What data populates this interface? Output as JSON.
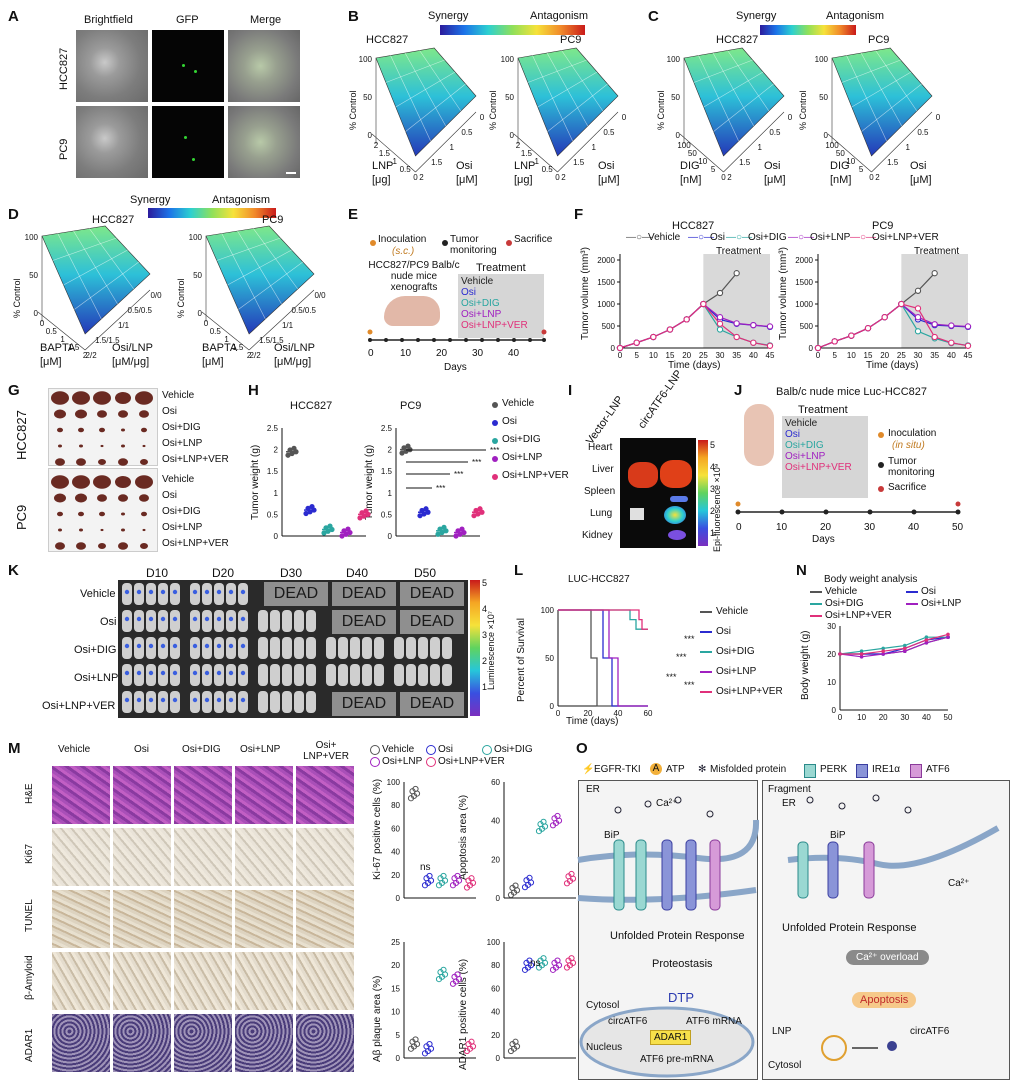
{
  "panels": {
    "A": {
      "label": "A",
      "cols": [
        "Brightfield",
        "GFP",
        "Merge"
      ],
      "rows": [
        "HCC827",
        "PC9"
      ]
    },
    "B": {
      "label": "B",
      "legend_left": "Synergy",
      "legend_right": "Antagonism",
      "left_title": "HCC827",
      "right_title": "PC9",
      "zlabel": "% Control",
      "ax1": "LNP",
      "ax1_unit": "[μg]",
      "ax2": "Osi",
      "ax2_unit": "[μM]",
      "ticks1": [
        "2",
        "1.5",
        "1",
        "0.5",
        "0"
      ],
      "ticks2": [
        "2",
        "1.5",
        "1",
        "0.5",
        "0"
      ],
      "z_ticks": [
        "100",
        "50",
        "0"
      ]
    },
    "C": {
      "label": "C",
      "legend_left": "Synergy",
      "legend_right": "Antagonism",
      "left_title": "HCC827",
      "right_title": "PC9",
      "zlabel": "% Control",
      "ax1": "DIG",
      "ax1_unit": "[nM]",
      "ax2": "Osi",
      "ax2_unit": "[μM]",
      "ticks1": [
        "100",
        "50",
        "10",
        "5",
        "0"
      ],
      "ticks2": [
        "2",
        "1.5",
        "1",
        "0.5",
        "0"
      ],
      "z_ticks": [
        "100",
        "50",
        "0"
      ]
    },
    "D": {
      "label": "D",
      "legend_left": "Synergy",
      "legend_right": "Antagonism",
      "left_title": "HCC827",
      "right_title": "PC9",
      "zlabel": "% Control",
      "ax1": "BAPTA",
      "ax1_unit": "[μM]",
      "ax2": "Osi/LNP",
      "ax2_unit": "[μM/μg]",
      "ticks1": [
        "0",
        "0.5",
        "1",
        "1.5",
        "2"
      ],
      "ticks2": [
        "2/2",
        "1.5/1.5",
        "1/1",
        "0.5/0.5",
        "0/0"
      ],
      "z_ticks": [
        "100",
        "50",
        "0"
      ]
    },
    "E": {
      "label": "E",
      "inoc": "Inoculation",
      "inoc_sub": "(s.c.)",
      "monitor": "Tumor monitoring",
      "sacrifice": "Sacrifice",
      "mice": "HCC827/PC9 Balb/c nude mice xenografts",
      "treatment": "Treatment",
      "groups": [
        "Vehicle",
        "Osi",
        "Osi+DIG",
        "Osi+LNP",
        "Osi+LNP+VER"
      ],
      "days_label": "Days",
      "days": [
        "0",
        "10",
        "20",
        "30",
        "40"
      ]
    },
    "F": {
      "label": "F",
      "legend": [
        "Vehicle",
        "Osi",
        "Osi+DIG",
        "Osi+LNP",
        "Osi+LNP+VER"
      ],
      "titles": [
        "HCC827",
        "PC9"
      ],
      "ylabel": "Tumor volume (mm³)",
      "xlabel": "Time (days)",
      "treatment": "Treatment",
      "sig": "***"
    },
    "G": {
      "label": "G",
      "rows": [
        "HCC827",
        "PC9"
      ],
      "groups": [
        "Vehicle",
        "Osi",
        "Osi+DIG",
        "Osi+LNP",
        "Osi+LNP+VER"
      ]
    },
    "H": {
      "label": "H",
      "titles": [
        "HCC827",
        "PC9"
      ],
      "ylabel": "Tumor weight (g)",
      "legend": [
        "Vehicle",
        "Osi",
        "Osi+DIG",
        "Osi+LNP",
        "Osi+LNP+VER"
      ],
      "sig": "***"
    },
    "I": {
      "label": "I",
      "cols": [
        "Vector-LNP",
        "circATF6-LNP"
      ],
      "organs": [
        "Heart",
        "Liver",
        "Spleen",
        "Lung",
        "Kidney"
      ],
      "scale_label": "Epi-fluorescence ×10⁹",
      "scale_ticks": [
        "5",
        "4",
        "3",
        "2",
        "1"
      ]
    },
    "J": {
      "label": "J",
      "title": "Balb/c nude mice Luc-HCC827",
      "treatment": "Treatment",
      "groups": [
        "Vehicle",
        "Osi",
        "Osi+DIG",
        "Osi+LNP",
        "Osi+LNP+VER"
      ],
      "inoc": "Inoculation",
      "inoc_sub": "(in situ)",
      "monitor": "Tumor monitoring",
      "sacrifice": "Sacrifice",
      "days_label": "Days",
      "days": [
        "0",
        "10",
        "20",
        "30",
        "40",
        "50"
      ]
    },
    "K": {
      "label": "K",
      "days": [
        "D10",
        "D20",
        "D30",
        "D40",
        "D50"
      ],
      "groups": [
        "Vehicle",
        "Osi",
        "Osi+DIG",
        "Osi+LNP",
        "Osi+LNP+VER"
      ],
      "dead": "DEAD",
      "scale_label": "Luminescence ×10⁷",
      "scale_ticks": [
        "5",
        "4",
        "3",
        "2",
        "1"
      ]
    },
    "L": {
      "label": "L",
      "title": "LUC-HCC827",
      "ylabel": "Percent of Survival",
      "xlabel": "Time (days)",
      "legend": [
        "Vehicle",
        "Osi",
        "Osi+DIG",
        "Osi+LNP",
        "Osi+LNP+VER"
      ],
      "sig": "***"
    },
    "N": {
      "label": "N",
      "title": "Body weight analysis",
      "ylabel": "Body weight (g)",
      "legend": [
        "Vehicle",
        "Osi",
        "Osi+DIG",
        "Osi+LNP",
        "Osi+LNP+VER"
      ]
    },
    "M": {
      "label": "M",
      "cols": [
        "Vehicle",
        "Osi",
        "Osi+DIG",
        "Osi+LNP",
        "Osi+ LNP+VER"
      ],
      "rows": [
        "H&E",
        "Ki67",
        "TUNEL",
        "β-Amyloid",
        "ADAR1"
      ],
      "legend": [
        "Vehicle",
        "Osi",
        "Osi+DIG",
        "Osi+LNP",
        "Osi+LNP+VER"
      ],
      "y1": "Ki-67 positive cells (%)",
      "y2": "Apoptosis area (%)",
      "y3": "Aβ plaque area (%)",
      "y4": "ADAR1 positive cells (%)",
      "ns": "ns",
      "sig": "***"
    },
    "O": {
      "label": "O",
      "legend": [
        "EGFR-TKI",
        "ATP",
        "Misfolded protein",
        "PERK",
        "IRE1α",
        "ATF6"
      ],
      "left": {
        "er": "ER",
        "ca": "Ca²⁺",
        "bip": "BiP",
        "upr": "Unfolded Protein Response",
        "proteo": "Proteostasis",
        "dtp": "DTP",
        "cytosol": "Cytosol",
        "nucleus": "Nucleus",
        "circ": "circATF6",
        "adar": "ADAR1",
        "mrna": "ATF6 mRNA",
        "pre": "ATF6 pre-mRNA"
      },
      "right": {
        "frag": "Fragment",
        "er": "ER",
        "bip": "BiP",
        "ca": "Ca²⁺",
        "upr": "Unfolded Protein Response",
        "overload": "Ca²⁺ overload",
        "apoptosis": "Apoptosis",
        "lnp": "LNP",
        "circ": "circATF6",
        "cytosol": "Cytosol"
      }
    }
  },
  "chart_data": [
    {
      "type": "line",
      "panel": "F-HCC827",
      "title": "HCC827",
      "xlabel": "Time (days)",
      "ylabel": "Tumor volume (mm³)",
      "x": [
        0,
        5,
        10,
        15,
        20,
        25,
        30,
        35,
        40,
        45
      ],
      "xlim": [
        0,
        45
      ],
      "ylim": [
        0,
        2000
      ],
      "series": [
        {
          "name": "Vehicle",
          "values": [
            0,
            120,
            250,
            420,
            650,
            1000,
            1250,
            1700,
            null,
            null
          ]
        },
        {
          "name": "Osi",
          "values": [
            0,
            120,
            250,
            420,
            650,
            1000,
            650,
            550,
            520,
            480
          ]
        },
        {
          "name": "Osi+DIG",
          "values": [
            0,
            120,
            250,
            420,
            650,
            1000,
            420,
            250,
            120,
            60
          ]
        },
        {
          "name": "Osi+LNP",
          "values": [
            0,
            120,
            250,
            420,
            650,
            1000,
            700,
            560,
            520,
            490
          ]
        },
        {
          "name": "Osi+LNP+VER",
          "values": [
            0,
            120,
            250,
            420,
            650,
            1000,
            550,
            250,
            120,
            50
          ]
        }
      ]
    },
    {
      "type": "line",
      "panel": "F-PC9",
      "title": "PC9",
      "xlabel": "Time (days)",
      "ylabel": "Tumor volume (mm³)",
      "x": [
        0,
        5,
        10,
        15,
        20,
        25,
        30,
        35,
        40,
        45
      ],
      "xlim": [
        0,
        45
      ],
      "ylim": [
        0,
        2000
      ],
      "series": [
        {
          "name": "Vehicle",
          "values": [
            0,
            150,
            280,
            450,
            700,
            1000,
            1300,
            1700,
            null,
            null
          ]
        },
        {
          "name": "Osi",
          "values": [
            0,
            150,
            280,
            450,
            700,
            1000,
            650,
            520,
            500,
            480
          ]
        },
        {
          "name": "Osi+DIG",
          "values": [
            0,
            150,
            280,
            450,
            700,
            1000,
            380,
            220,
            110,
            60
          ]
        },
        {
          "name": "Osi+LNP",
          "values": [
            0,
            150,
            280,
            450,
            700,
            1000,
            700,
            540,
            510,
            490
          ]
        },
        {
          "name": "Osi+LNP+VER",
          "values": [
            0,
            150,
            280,
            450,
            700,
            1000,
            900,
            250,
            120,
            50
          ]
        }
      ]
    },
    {
      "type": "scatter",
      "panel": "H-HCC827",
      "title": "HCC827",
      "ylabel": "Tumor weight (g)",
      "ylim": [
        0,
        2.5
      ],
      "categories": [
        "Vehicle",
        "Osi",
        "Osi+DIG",
        "Osi+LNP",
        "Osi+LNP+VER"
      ],
      "values": [
        1.95,
        0.6,
        0.15,
        0.08,
        0.5
      ]
    },
    {
      "type": "scatter",
      "panel": "H-PC9",
      "title": "PC9",
      "ylabel": "Tumor weight (g)",
      "ylim": [
        0,
        2.5
      ],
      "categories": [
        "Vehicle",
        "Osi",
        "Osi+DIG",
        "Osi+LNP",
        "Osi+LNP+VER"
      ],
      "values": [
        2.0,
        0.55,
        0.12,
        0.08,
        0.55
      ]
    },
    {
      "type": "line",
      "panel": "L",
      "title": "LUC-HCC827",
      "xlabel": "Time (days)",
      "ylabel": "Percent of Survival",
      "x": [
        0,
        20,
        40,
        60
      ],
      "xlim": [
        0,
        60
      ],
      "ylim": [
        0,
        100
      ],
      "series": [
        {
          "name": "Vehicle",
          "values": [
            100,
            100,
            0,
            0
          ]
        },
        {
          "name": "Osi",
          "values": [
            100,
            100,
            0,
            0
          ]
        },
        {
          "name": "Osi+DIG",
          "values": [
            100,
            100,
            100,
            80
          ]
        },
        {
          "name": "Osi+LNP",
          "values": [
            100,
            100,
            0,
            0
          ]
        },
        {
          "name": "Osi+LNP+VER",
          "values": [
            100,
            100,
            100,
            80
          ]
        }
      ]
    },
    {
      "type": "line",
      "panel": "N",
      "title": "Body weight analysis",
      "ylabel": "Body weight (g)",
      "x": [
        0,
        10,
        20,
        30,
        40,
        50
      ],
      "xlim": [
        0,
        50
      ],
      "ylim": [
        0,
        30
      ],
      "series": [
        {
          "name": "Vehicle",
          "values": [
            20,
            20,
            20,
            21,
            24,
            26
          ]
        },
        {
          "name": "Osi",
          "values": [
            20,
            20,
            20,
            22,
            25,
            26
          ]
        },
        {
          "name": "Osi+DIG",
          "values": [
            20,
            21,
            22,
            23,
            26,
            26
          ]
        },
        {
          "name": "Osi+LNP",
          "values": [
            20,
            19,
            20,
            21,
            24,
            26
          ]
        },
        {
          "name": "Osi+LNP+VER",
          "values": [
            20,
            20,
            21,
            22,
            25,
            27
          ]
        }
      ]
    },
    {
      "type": "scatter",
      "panel": "M-Ki67",
      "ylabel": "Ki-67 positive cells (%)",
      "ylim": [
        0,
        100
      ],
      "categories": [
        "Vehicle",
        "Osi",
        "Osi+DIG",
        "Osi+LNP",
        "Osi+LNP+VER"
      ],
      "values": [
        90,
        15,
        15,
        15,
        13
      ]
    },
    {
      "type": "scatter",
      "panel": "M-Apoptosis",
      "ylabel": "Apoptosis area (%)",
      "ylim": [
        0,
        60
      ],
      "categories": [
        "Vehicle",
        "Osi",
        "Osi+DIG",
        "Osi+LNP",
        "Osi+LNP+VER"
      ],
      "values": [
        4,
        8,
        37,
        40,
        10
      ]
    },
    {
      "type": "scatter",
      "panel": "M-Abeta",
      "ylabel": "Aβ plaque area (%)",
      "ylim": [
        0,
        25
      ],
      "categories": [
        "Vehicle",
        "Osi",
        "Osi+DIG",
        "Osi+LNP",
        "Osi+LNP+VER"
      ],
      "values": [
        3,
        2,
        18,
        17,
        2.5
      ]
    },
    {
      "type": "scatter",
      "panel": "M-ADAR1",
      "ylabel": "ADAR1 positive cells (%)",
      "ylim": [
        0,
        100
      ],
      "categories": [
        "Vehicle",
        "Osi",
        "Osi+DIG",
        "Osi+LNP",
        "Osi+LNP+VER"
      ],
      "values": [
        10,
        80,
        82,
        80,
        82
      ]
    }
  ],
  "colors": {
    "Vehicle": "#555555",
    "Osi": "#2b2bd0",
    "Osi+DIG": "#2aa6a0",
    "Osi+LNP": "#a020c0",
    "Osi+LNP+VER": "#e0307a"
  }
}
